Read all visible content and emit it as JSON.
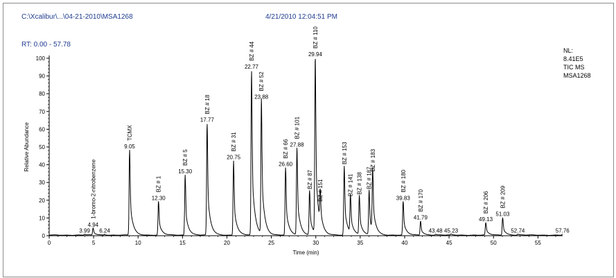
{
  "header": {
    "file_path": "C:\\Xcalibur\\...\\04-21-2010\\MSA1268",
    "datetime": "4/21/2010 12:04:51 PM"
  },
  "rt_range": "RT: 0.00 - 57.78",
  "info_block": [
    "NL:",
    "8.41E5",
    "TIC MS",
    "MSA1268"
  ],
  "colors": {
    "header_text": "#1f3c8f",
    "trace": "#000000",
    "baseline_highlight": "#6abf6a"
  },
  "chart_data": {
    "type": "line",
    "xlabel": "Time (min)",
    "ylabel": "Relative Abundance",
    "xlim": [
      0,
      57.78
    ],
    "ylim": [
      0,
      100
    ],
    "xticks": [
      0,
      5,
      10,
      15,
      20,
      25,
      30,
      35,
      40,
      45,
      50,
      55
    ],
    "yticks": [
      0,
      10,
      20,
      30,
      40,
      50,
      60,
      70,
      80,
      90,
      100
    ],
    "peaks": [
      {
        "rt": 3.99,
        "height": 0.5,
        "rt_label": "3.99",
        "name": ""
      },
      {
        "rt": 4.94,
        "height": 4,
        "rt_label": "4.94",
        "name": "1-bromo-2-nitrobenzene"
      },
      {
        "rt": 6.24,
        "height": 0.5,
        "rt_label": "6.24",
        "name": ""
      },
      {
        "rt": 9.05,
        "height": 48,
        "rt_label": "9.05",
        "name": "TCMX"
      },
      {
        "rt": 12.3,
        "height": 19,
        "rt_label": "12.30",
        "name": "BZ # 1"
      },
      {
        "rt": 15.3,
        "height": 34,
        "rt_label": "15.30",
        "name": "BZ # 5"
      },
      {
        "rt": 17.77,
        "height": 63,
        "rt_label": "17.77",
        "name": "BZ # 18"
      },
      {
        "rt": 20.75,
        "height": 42,
        "rt_label": "20.75",
        "name": "BZ # 31"
      },
      {
        "rt": 22.77,
        "height": 93,
        "rt_label": "22.77",
        "name": "BZ # 44"
      },
      {
        "rt": 23.88,
        "height": 76,
        "rt_label": "23.88",
        "name": "BZ # 52"
      },
      {
        "rt": 26.6,
        "height": 38,
        "rt_label": "26.60",
        "name": "BZ # 66"
      },
      {
        "rt": 27.88,
        "height": 49,
        "rt_label": "27.88",
        "name": "BZ # 101"
      },
      {
        "rt": 29.3,
        "height": 25,
        "rt_label": "",
        "name": "BZ # 87"
      },
      {
        "rt": 29.94,
        "height": 100,
        "rt_label": "29.94",
        "name": "BZ # 110"
      },
      {
        "rt": 30.5,
        "height": 18,
        "rt_label": "",
        "name": "BZ # 151"
      },
      {
        "rt": 33.2,
        "height": 39,
        "rt_label": "",
        "name": "BZ # 153"
      },
      {
        "rt": 33.9,
        "height": 21,
        "rt_label": "",
        "name": "BZ # 141"
      },
      {
        "rt": 34.9,
        "height": 22,
        "rt_label": "",
        "name": "BZ # 138"
      },
      {
        "rt": 36.0,
        "height": 25,
        "rt_label": "",
        "name": "BZ # 187"
      },
      {
        "rt": 36.4,
        "height": 35,
        "rt_label": "",
        "name": "BZ # 183"
      },
      {
        "rt": 39.83,
        "height": 19,
        "rt_label": "39.83",
        "name": "BZ # 180"
      },
      {
        "rt": 41.79,
        "height": 8,
        "rt_label": "41.79",
        "name": "BZ # 170"
      },
      {
        "rt": 43.48,
        "height": 0.5,
        "rt_label": "43.48",
        "name": ""
      },
      {
        "rt": 45.23,
        "height": 0.5,
        "rt_label": "45.23",
        "name": ""
      },
      {
        "rt": 49.13,
        "height": 7,
        "rt_label": "49.13",
        "name": "BZ # 206"
      },
      {
        "rt": 51.03,
        "height": 10,
        "rt_label": "51.03",
        "name": "BZ # 209"
      },
      {
        "rt": 52.74,
        "height": 0.5,
        "rt_label": "52.74",
        "name": ""
      },
      {
        "rt": 57.76,
        "height": 0.5,
        "rt_label": "57.76",
        "name": ""
      }
    ]
  }
}
